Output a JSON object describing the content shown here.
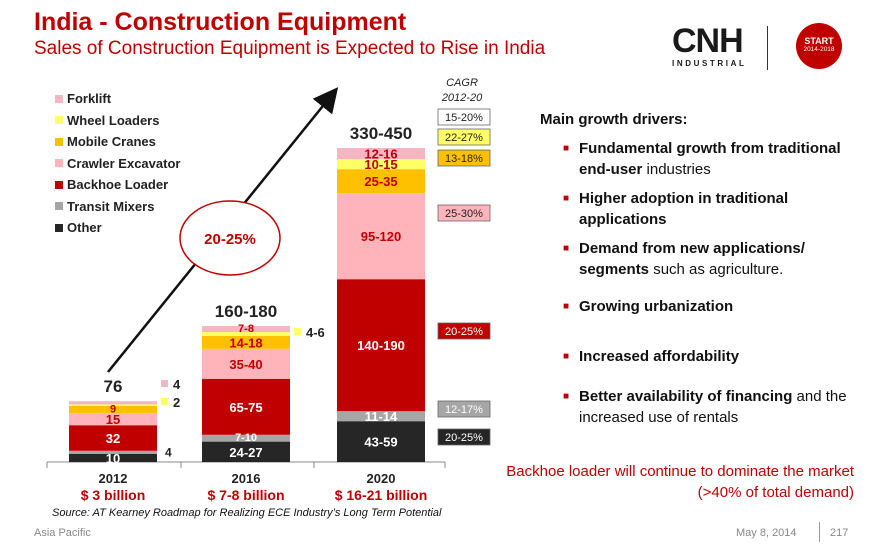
{
  "header": {
    "title": "India - Construction Equipment",
    "subtitle": "Sales of Construction Equipment is Expected to Rise in India",
    "logo_main": "CNH",
    "logo_sub": "INDUSTRIAL",
    "badge_line1": "START",
    "badge_line2": "2014-2018"
  },
  "colors": {
    "red": "#c00000",
    "forklift": "#f4b6c2",
    "wheel_loaders": "#ffff66",
    "mobile_cranes": "#ffc000",
    "crawler_excavator": "#ffb3ba",
    "backhoe_loader": "#c00000",
    "transit_mixers": "#a6a6a6",
    "other": "#262626"
  },
  "chart_data": {
    "type": "stacked-bar",
    "categories": [
      "2012",
      "2016",
      "2020"
    ],
    "series": [
      {
        "name": "Other",
        "labels": [
          "10",
          "24-27",
          "43-59"
        ],
        "values": [
          10,
          25.5,
          51
        ]
      },
      {
        "name": "Transit Mixers",
        "labels": [
          "4",
          "7-10",
          "11-14"
        ],
        "values": [
          4,
          8.5,
          12.5
        ]
      },
      {
        "name": "Backhoe Loader",
        "labels": [
          "32",
          "65-75",
          "140-190"
        ],
        "values": [
          32,
          70,
          165
        ]
      },
      {
        "name": "Crawler Excavator",
        "labels": [
          "15",
          "35-40",
          "95-120"
        ],
        "values": [
          15,
          37.5,
          107.5
        ]
      },
      {
        "name": "Mobile Cranes",
        "labels": [
          "9",
          "14-18",
          "25-35"
        ],
        "values": [
          9,
          16,
          30
        ]
      },
      {
        "name": "Wheel Loaders",
        "labels": [
          "2",
          "4-6",
          "10-15"
        ],
        "values": [
          2,
          5,
          12.5
        ]
      },
      {
        "name": "Forklift",
        "labels": [
          "4",
          "7-8",
          "12-16"
        ],
        "values": [
          4,
          7.5,
          14
        ]
      }
    ],
    "legend": [
      "Forklift",
      "Wheel Loaders",
      "Mobile Cranes",
      "Crawler Excavator",
      "Backhoe Loader",
      "Transit Mixers",
      "Other"
    ],
    "totals": [
      "76",
      "160-180",
      "330-450"
    ],
    "revenue": [
      "$ 3 billion",
      "$ 7-8 billion",
      "$ 16-21 billion"
    ],
    "growth_label": "20-25%",
    "cagr_title_line1": "CAGR",
    "cagr_title_line2": "2012-20",
    "cagr": [
      {
        "series": "Forklift",
        "value": "15-20%"
      },
      {
        "series": "Wheel Loaders",
        "value": "22-27%"
      },
      {
        "series": "Mobile Cranes",
        "value": "13-18%"
      },
      {
        "series": "Crawler Excavator",
        "value": "25-30%"
      },
      {
        "series": "Backhoe Loader",
        "value": "20-25%"
      },
      {
        "series": "Transit Mixers",
        "value": "12-17%"
      },
      {
        "series": "Other",
        "value": "20-25%"
      }
    ]
  },
  "drivers": {
    "title": "Main growth drivers:",
    "items": [
      {
        "bold": "Fundamental growth from traditional end-user",
        "rest": " industries"
      },
      {
        "bold": "Higher adoption in traditional applications",
        "rest": ""
      },
      {
        "bold": "Demand from new applications/ segments",
        "rest": " such as agriculture."
      },
      {
        "bold": "Growing urbanization",
        "rest": ""
      },
      {
        "bold": "Increased affordability",
        "rest": ""
      },
      {
        "bold": "Better availability of financing",
        "rest": " and the increased use of rentals"
      }
    ]
  },
  "note_line1": "Backhoe loader will continue to dominate the market",
  "note_line2": "(>40% of total demand)",
  "source": "Source: AT Kearney Roadmap for Realizing ECE Industry’s Long Term Potential",
  "footer": {
    "region": "Asia Pacific",
    "date": "May 8, 2014",
    "page": "217"
  }
}
